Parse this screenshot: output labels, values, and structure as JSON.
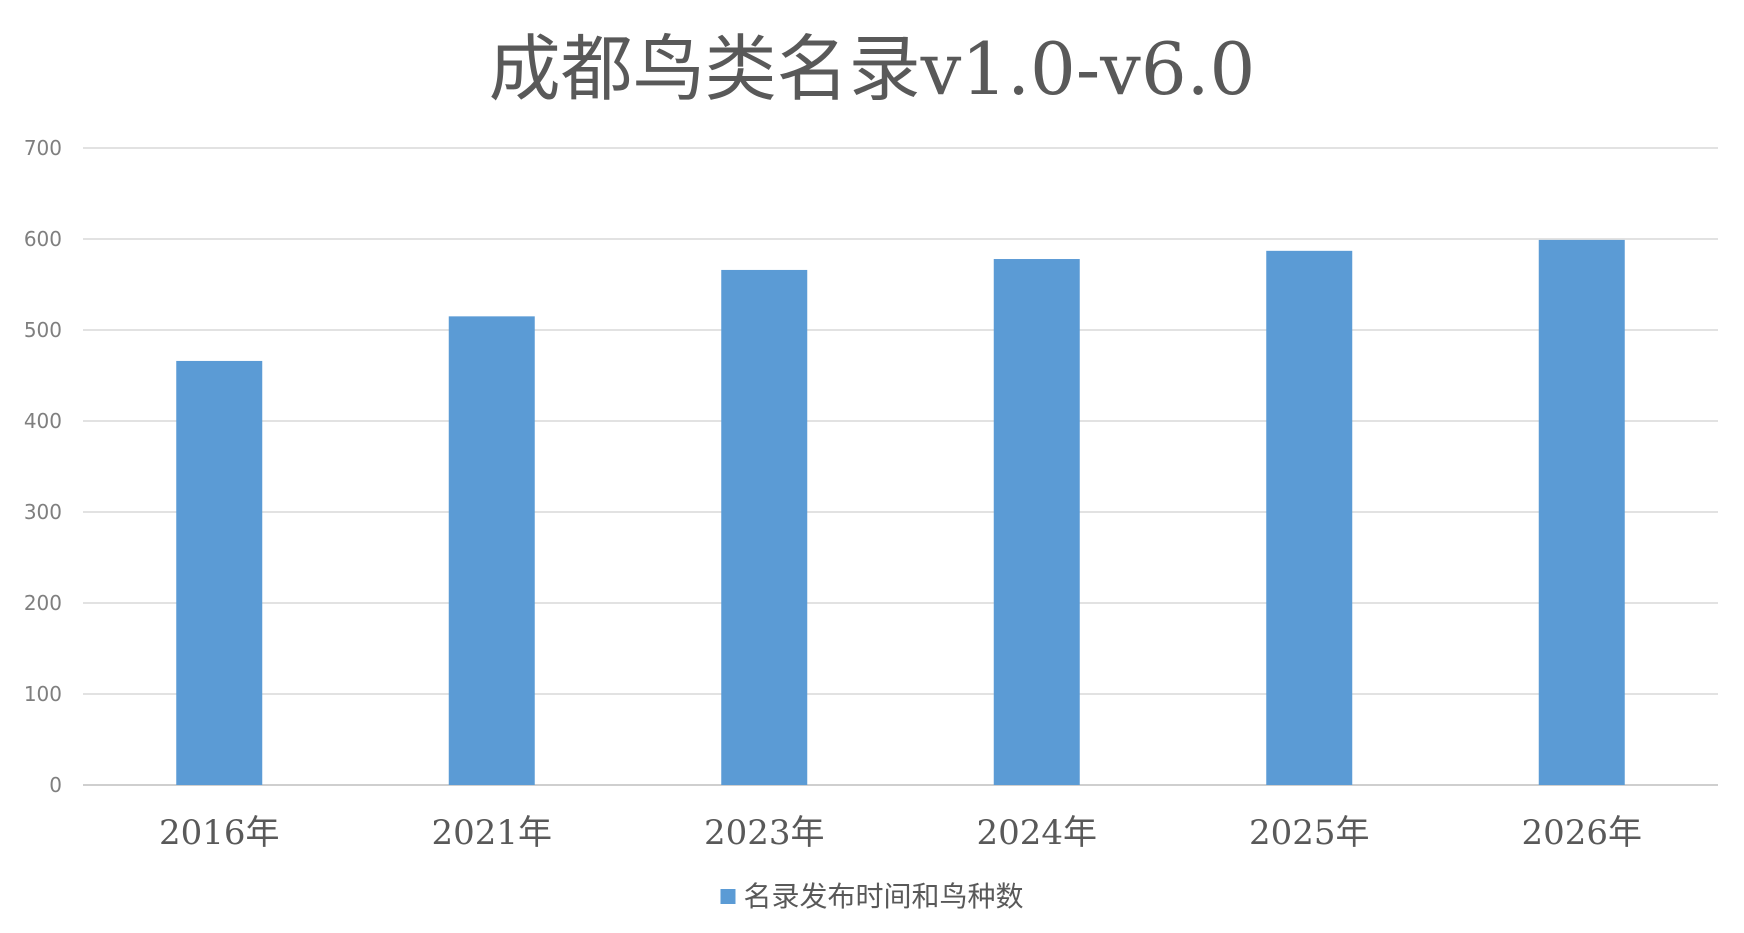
{
  "chart_data": {
    "type": "bar",
    "title": "成都鸟类名录v1.0-v6.0",
    "categories": [
      "2016年",
      "2021年",
      "2023年",
      "2024年",
      "2025年",
      "2026年"
    ],
    "series": [
      {
        "name": "名录发布时间和鸟种数",
        "values": [
          466,
          515,
          566,
          578,
          587,
          599
        ],
        "color": "#5b9bd5"
      }
    ],
    "ylim": [
      0,
      700
    ],
    "yticks": [
      0,
      100,
      200,
      300,
      400,
      500,
      600,
      700
    ],
    "grid": true,
    "legend_position": "bottom-center",
    "xlabel": "",
    "ylabel": ""
  }
}
